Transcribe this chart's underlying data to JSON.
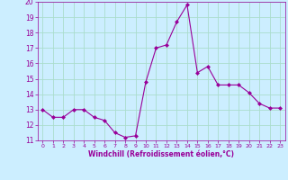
{
  "x": [
    0,
    1,
    2,
    3,
    4,
    5,
    6,
    7,
    8,
    9,
    10,
    11,
    12,
    13,
    14,
    15,
    16,
    17,
    18,
    19,
    20,
    21,
    22,
    23
  ],
  "y": [
    13,
    12.5,
    12.5,
    13,
    13,
    12.5,
    12.3,
    11.5,
    11.2,
    11.3,
    14.8,
    17.0,
    17.2,
    18.7,
    19.8,
    15.4,
    15.8,
    14.6,
    14.6,
    14.6,
    14.1,
    13.4,
    13.1,
    13.1
  ],
  "line_color": "#990099",
  "marker": "D",
  "marker_size": 2.0,
  "bg_color": "#cceeff",
  "grid_color": "#aaddcc",
  "xlabel": "Windchill (Refroidissement éolien,°C)",
  "xlabel_color": "#990099",
  "tick_color": "#990099",
  "ylim": [
    11,
    20
  ],
  "xlim": [
    -0.5,
    23.5
  ],
  "yticks": [
    11,
    12,
    13,
    14,
    15,
    16,
    17,
    18,
    19,
    20
  ],
  "xticks": [
    0,
    1,
    2,
    3,
    4,
    5,
    6,
    7,
    8,
    9,
    10,
    11,
    12,
    13,
    14,
    15,
    16,
    17,
    18,
    19,
    20,
    21,
    22,
    23
  ]
}
